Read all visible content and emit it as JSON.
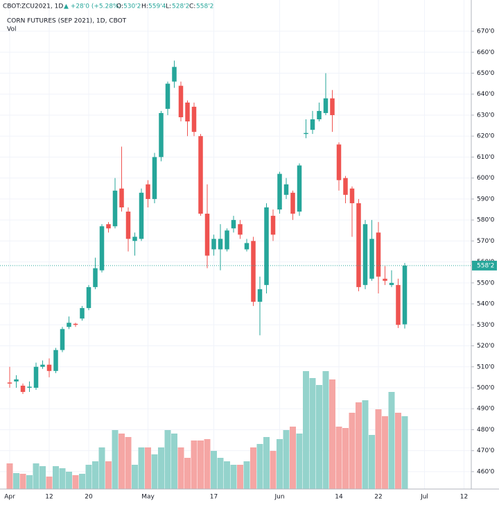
{
  "header": {
    "symbol": "CBOT:ZCU2021, 1D",
    "change": "▲ +28'0 (+5.28%)",
    "open_label": "O:",
    "open": "530'2",
    "high_label": "H:",
    "high": "559'4",
    "low_label": "L:",
    "low": "528'2",
    "close_label": "C:",
    "close": "558'2"
  },
  "chart_data": {
    "type": "candlestick",
    "title": "CORN FUTURES (SEP 2021), 1D, CBOT",
    "volume_label": "Vol",
    "categories": [
      "Apr",
      null,
      null,
      null,
      null,
      null,
      "12",
      null,
      null,
      null,
      null,
      null,
      "20",
      null,
      null,
      null,
      null,
      null,
      null,
      null,
      null,
      "May",
      null,
      null,
      null,
      null,
      null,
      null,
      null,
      null,
      null,
      "17",
      null,
      null,
      null,
      null,
      null,
      null,
      null,
      null,
      null,
      "Jun",
      null,
      null,
      null,
      null,
      null,
      null,
      null,
      null,
      "14",
      null,
      null,
      null,
      null,
      null,
      "22",
      null,
      null,
      null,
      null,
      null,
      null,
      "Jul",
      null,
      null,
      null,
      null,
      null,
      "12"
    ],
    "open": [
      502.5,
      503,
      501,
      500,
      500,
      510,
      511,
      508,
      518,
      529,
      530.5,
      533,
      538,
      548,
      556,
      578,
      577,
      595,
      584,
      570,
      571,
      597,
      590,
      610,
      633,
      646,
      644,
      636,
      634,
      620,
      583,
      566,
      566,
      566,
      576,
      578,
      566,
      570,
      541,
      549,
      582,
      585,
      592,
      593,
      584,
      621,
      623,
      628,
      631,
      638,
      616,
      600,
      595,
      588,
      549,
      552,
      574,
      552,
      549,
      549,
      530.25,
      null,
      null,
      null,
      null,
      null,
      null,
      null,
      null,
      null
    ],
    "high": [
      510,
      506,
      502,
      503,
      512,
      513,
      514,
      519,
      529,
      534,
      531,
      539,
      549,
      562,
      578,
      579,
      600,
      615,
      586,
      574,
      595,
      599,
      612,
      632,
      646,
      656,
      646,
      637,
      636,
      621,
      597,
      573,
      578,
      576,
      582,
      580,
      571,
      572,
      553,
      588,
      585,
      603,
      600,
      594,
      607,
      628,
      632,
      636,
      650,
      642,
      617,
      601,
      596,
      590,
      580,
      580,
      579,
      558,
      556,
      552,
      559.5,
      null,
      null,
      null,
      null,
      null,
      null,
      null,
      null,
      null
    ],
    "low": [
      500,
      500,
      497,
      498,
      499,
      509,
      505,
      507,
      517,
      528,
      529,
      532,
      537,
      547,
      555,
      574,
      576,
      584,
      565,
      563,
      570,
      586,
      588,
      608,
      630,
      643,
      627,
      620,
      620,
      582,
      557,
      563,
      556,
      565,
      574,
      571,
      565,
      539,
      525,
      545,
      570,
      583,
      590,
      580,
      582,
      619,
      621,
      627,
      630,
      622,
      594,
      588,
      572,
      546,
      547,
      551,
      545,
      549,
      548,
      528.5,
      528.25,
      null,
      null,
      null,
      null,
      null,
      null,
      null,
      null,
      null
    ],
    "close": [
      502,
      504,
      498,
      500.5,
      510,
      511,
      508,
      518,
      528,
      531,
      530,
      538,
      548,
      557,
      577,
      576,
      594,
      586,
      571,
      572,
      593,
      590,
      610,
      631,
      645,
      653,
      629,
      627,
      622,
      583,
      563,
      571,
      571,
      575,
      580,
      573,
      569,
      541,
      547,
      586,
      573,
      602,
      597,
      583,
      606,
      621.5,
      628,
      632,
      638,
      630,
      599,
      592,
      588,
      548,
      578,
      571,
      553,
      551,
      550,
      530,
      558.25,
      null,
      null,
      null,
      null,
      null,
      null,
      null,
      null,
      null
    ],
    "volume": [
      37,
      23,
      22,
      20,
      37,
      33,
      18,
      33,
      30,
      25,
      20,
      22,
      35,
      40,
      60,
      40,
      85,
      80,
      75,
      35,
      60,
      60,
      50,
      60,
      85,
      80,
      60,
      45,
      70,
      70,
      72,
      55,
      45,
      40,
      35,
      35,
      40,
      60,
      65,
      75,
      55,
      72,
      85,
      90,
      80,
      170,
      160,
      150,
      170,
      158,
      90,
      88,
      110,
      125,
      128,
      78,
      115,
      105,
      140,
      110,
      105,
      null,
      null,
      null,
      null,
      null,
      null,
      null,
      null,
      null
    ],
    "vlim": [
      0,
      200
    ],
    "up_color": "#26a69a",
    "down_color": "#ef5350",
    "volume_up_color": "#94d3cc",
    "volume_down_color": "#f5a6a4",
    "ylim": [
      451.7,
      684.9
    ],
    "yticks": [
      {
        "value": 460,
        "label": "460'0"
      },
      {
        "value": 470,
        "label": "470'0"
      },
      {
        "value": 480,
        "label": "480'0"
      },
      {
        "value": 490,
        "label": "490'0"
      },
      {
        "value": 500,
        "label": "500'0"
      },
      {
        "value": 510,
        "label": "510'0"
      },
      {
        "value": 520,
        "label": "520'0"
      },
      {
        "value": 530,
        "label": "530'0"
      },
      {
        "value": 540,
        "label": "540'0"
      },
      {
        "value": 550,
        "label": "550'0"
      },
      {
        "value": 560,
        "label": "560'0"
      },
      {
        "value": 570,
        "label": "570'0"
      },
      {
        "value": 580,
        "label": "580'0"
      },
      {
        "value": 590,
        "label": "590'0"
      },
      {
        "value": 600,
        "label": "600'0"
      },
      {
        "value": 610,
        "label": "610'0"
      },
      {
        "value": 620,
        "label": "620'0"
      },
      {
        "value": 630,
        "label": "630'0"
      },
      {
        "value": 640,
        "label": "640'0"
      },
      {
        "value": 650,
        "label": "650'0"
      },
      {
        "value": 660,
        "label": "660'0"
      },
      {
        "value": 670,
        "label": "670'0"
      }
    ],
    "last_price": {
      "value": 558.25,
      "label": "558'2"
    },
    "grid": true
  }
}
